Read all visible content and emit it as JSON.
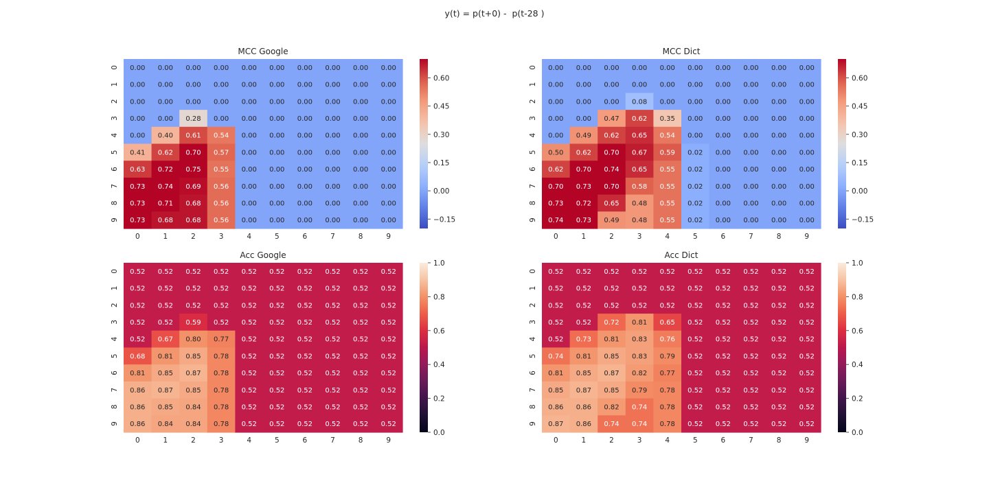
{
  "figure": {
    "suptitle": "y(t) = p(t+0) -  p(t-28 )"
  },
  "chart_data": [
    {
      "type": "heatmap",
      "title": "MCC Google",
      "x_ticks": [
        "0",
        "1",
        "2",
        "3",
        "4",
        "5",
        "6",
        "7",
        "8",
        "9"
      ],
      "y_ticks": [
        "0",
        "1",
        "2",
        "3",
        "4",
        "5",
        "6",
        "7",
        "8",
        "9"
      ],
      "colormap": "coolwarm",
      "vmin": -0.2,
      "vmax": 0.7,
      "colorbar_ticks": [
        "-0.15",
        "0.00",
        "0.15",
        "0.30",
        "0.45",
        "0.60"
      ],
      "colorbar_tick_values": [
        -0.15,
        0.0,
        0.15,
        0.3,
        0.45,
        0.6
      ],
      "values": [
        [
          0.0,
          0.0,
          0.0,
          0.0,
          0.0,
          0.0,
          0.0,
          0.0,
          0.0,
          0.0
        ],
        [
          0.0,
          0.0,
          0.0,
          0.0,
          0.0,
          0.0,
          0.0,
          0.0,
          0.0,
          0.0
        ],
        [
          0.0,
          0.0,
          0.0,
          0.0,
          0.0,
          0.0,
          0.0,
          0.0,
          0.0,
          0.0
        ],
        [
          0.0,
          0.0,
          0.28,
          0.0,
          0.0,
          0.0,
          0.0,
          0.0,
          0.0,
          0.0
        ],
        [
          0.0,
          0.4,
          0.61,
          0.54,
          0.0,
          0.0,
          0.0,
          0.0,
          0.0,
          0.0
        ],
        [
          0.41,
          0.62,
          0.7,
          0.57,
          0.0,
          0.0,
          0.0,
          0.0,
          0.0,
          0.0
        ],
        [
          0.63,
          0.72,
          0.75,
          0.55,
          0.0,
          0.0,
          0.0,
          0.0,
          0.0,
          0.0
        ],
        [
          0.73,
          0.74,
          0.69,
          0.56,
          0.0,
          0.0,
          0.0,
          0.0,
          0.0,
          0.0
        ],
        [
          0.73,
          0.71,
          0.68,
          0.56,
          0.0,
          0.0,
          0.0,
          0.0,
          0.0,
          0.0
        ],
        [
          0.73,
          0.68,
          0.68,
          0.56,
          0.0,
          0.0,
          0.0,
          0.0,
          0.0,
          0.0
        ]
      ]
    },
    {
      "type": "heatmap",
      "title": "MCC Dict",
      "x_ticks": [
        "0",
        "1",
        "2",
        "3",
        "4",
        "5",
        "6",
        "7",
        "8",
        "9"
      ],
      "y_ticks": [
        "0",
        "1",
        "2",
        "3",
        "4",
        "5",
        "6",
        "7",
        "8",
        "9"
      ],
      "colormap": "coolwarm",
      "vmin": -0.2,
      "vmax": 0.7,
      "colorbar_ticks": [
        "-0.15",
        "0.00",
        "0.15",
        "0.30",
        "0.45",
        "0.60"
      ],
      "colorbar_tick_values": [
        -0.15,
        0.0,
        0.15,
        0.3,
        0.45,
        0.6
      ],
      "values": [
        [
          0.0,
          0.0,
          0.0,
          0.0,
          0.0,
          0.0,
          0.0,
          0.0,
          0.0,
          0.0
        ],
        [
          0.0,
          0.0,
          0.0,
          0.0,
          0.0,
          0.0,
          0.0,
          0.0,
          0.0,
          0.0
        ],
        [
          0.0,
          0.0,
          0.0,
          0.08,
          0.0,
          0.0,
          0.0,
          0.0,
          0.0,
          0.0
        ],
        [
          0.0,
          0.0,
          0.47,
          0.62,
          0.35,
          0.0,
          0.0,
          0.0,
          0.0,
          0.0
        ],
        [
          0.0,
          0.49,
          0.62,
          0.65,
          0.54,
          0.0,
          0.0,
          0.0,
          0.0,
          0.0
        ],
        [
          0.5,
          0.62,
          0.7,
          0.67,
          0.59,
          0.02,
          0.0,
          0.0,
          0.0,
          0.0
        ],
        [
          0.62,
          0.7,
          0.74,
          0.65,
          0.55,
          0.02,
          0.0,
          0.0,
          0.0,
          0.0
        ],
        [
          0.7,
          0.73,
          0.7,
          0.58,
          0.55,
          0.02,
          0.0,
          0.0,
          0.0,
          0.0
        ],
        [
          0.73,
          0.72,
          0.65,
          0.48,
          0.55,
          0.02,
          0.0,
          0.0,
          0.0,
          0.0
        ],
        [
          0.74,
          0.73,
          0.49,
          0.48,
          0.55,
          0.02,
          0.0,
          0.0,
          0.0,
          0.0
        ]
      ]
    },
    {
      "type": "heatmap",
      "title": "Acc Google",
      "x_ticks": [
        "0",
        "1",
        "2",
        "3",
        "4",
        "5",
        "6",
        "7",
        "8",
        "9"
      ],
      "y_ticks": [
        "0",
        "1",
        "2",
        "3",
        "4",
        "5",
        "6",
        "7",
        "8",
        "9"
      ],
      "colormap": "rocket",
      "vmin": 0.0,
      "vmax": 1.0,
      "colorbar_ticks": [
        "0.0",
        "0.2",
        "0.4",
        "0.6",
        "0.8",
        "1.0"
      ],
      "colorbar_tick_values": [
        0.0,
        0.2,
        0.4,
        0.6,
        0.8,
        1.0
      ],
      "values": [
        [
          0.52,
          0.52,
          0.52,
          0.52,
          0.52,
          0.52,
          0.52,
          0.52,
          0.52,
          0.52
        ],
        [
          0.52,
          0.52,
          0.52,
          0.52,
          0.52,
          0.52,
          0.52,
          0.52,
          0.52,
          0.52
        ],
        [
          0.52,
          0.52,
          0.52,
          0.52,
          0.52,
          0.52,
          0.52,
          0.52,
          0.52,
          0.52
        ],
        [
          0.52,
          0.52,
          0.59,
          0.52,
          0.52,
          0.52,
          0.52,
          0.52,
          0.52,
          0.52
        ],
        [
          0.52,
          0.67,
          0.8,
          0.77,
          0.52,
          0.52,
          0.52,
          0.52,
          0.52,
          0.52
        ],
        [
          0.68,
          0.81,
          0.85,
          0.78,
          0.52,
          0.52,
          0.52,
          0.52,
          0.52,
          0.52
        ],
        [
          0.81,
          0.85,
          0.87,
          0.78,
          0.52,
          0.52,
          0.52,
          0.52,
          0.52,
          0.52
        ],
        [
          0.86,
          0.87,
          0.85,
          0.78,
          0.52,
          0.52,
          0.52,
          0.52,
          0.52,
          0.52
        ],
        [
          0.86,
          0.85,
          0.84,
          0.78,
          0.52,
          0.52,
          0.52,
          0.52,
          0.52,
          0.52
        ],
        [
          0.86,
          0.84,
          0.84,
          0.78,
          0.52,
          0.52,
          0.52,
          0.52,
          0.52,
          0.52
        ]
      ]
    },
    {
      "type": "heatmap",
      "title": "Acc Dict",
      "x_ticks": [
        "0",
        "1",
        "2",
        "3",
        "4",
        "5",
        "6",
        "7",
        "8",
        "9"
      ],
      "y_ticks": [
        "0",
        "1",
        "2",
        "3",
        "4",
        "5",
        "6",
        "7",
        "8",
        "9"
      ],
      "colormap": "rocket",
      "vmin": 0.0,
      "vmax": 1.0,
      "colorbar_ticks": [
        "0.0",
        "0.2",
        "0.4",
        "0.6",
        "0.8",
        "1.0"
      ],
      "colorbar_tick_values": [
        0.0,
        0.2,
        0.4,
        0.6,
        0.8,
        1.0
      ],
      "values": [
        [
          0.52,
          0.52,
          0.52,
          0.52,
          0.52,
          0.52,
          0.52,
          0.52,
          0.52,
          0.52
        ],
        [
          0.52,
          0.52,
          0.52,
          0.52,
          0.52,
          0.52,
          0.52,
          0.52,
          0.52,
          0.52
        ],
        [
          0.52,
          0.52,
          0.52,
          0.52,
          0.52,
          0.52,
          0.52,
          0.52,
          0.52,
          0.52
        ],
        [
          0.52,
          0.52,
          0.72,
          0.81,
          0.65,
          0.52,
          0.52,
          0.52,
          0.52,
          0.52
        ],
        [
          0.52,
          0.73,
          0.81,
          0.83,
          0.76,
          0.52,
          0.52,
          0.52,
          0.52,
          0.52
        ],
        [
          0.74,
          0.81,
          0.85,
          0.83,
          0.79,
          0.52,
          0.52,
          0.52,
          0.52,
          0.52
        ],
        [
          0.81,
          0.85,
          0.87,
          0.82,
          0.77,
          0.52,
          0.52,
          0.52,
          0.52,
          0.52
        ],
        [
          0.85,
          0.87,
          0.85,
          0.79,
          0.78,
          0.52,
          0.52,
          0.52,
          0.52,
          0.52
        ],
        [
          0.86,
          0.86,
          0.82,
          0.74,
          0.78,
          0.52,
          0.52,
          0.52,
          0.52,
          0.52
        ],
        [
          0.87,
          0.86,
          0.74,
          0.74,
          0.78,
          0.52,
          0.52,
          0.52,
          0.52,
          0.52
        ]
      ]
    }
  ]
}
